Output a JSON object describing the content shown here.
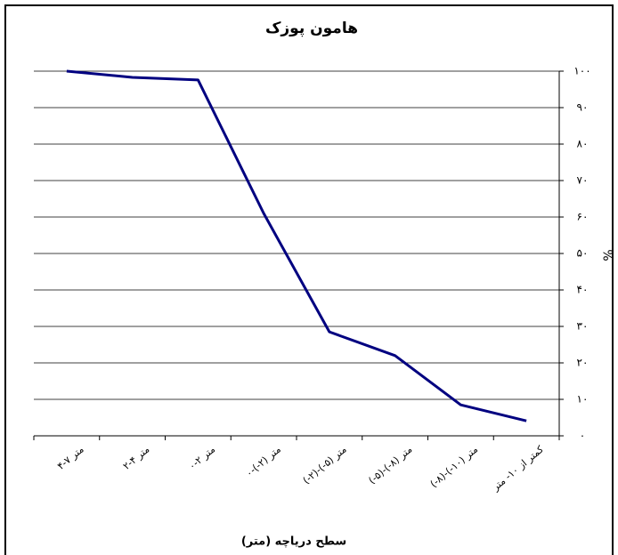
{
  "chart_data": {
    "type": "line",
    "title": "هامون پوزک",
    "x_label": "سطح دریاچه (متر)",
    "y_label": "%",
    "categories": [
      "۴-۷ متر",
      "۲-۴ متر",
      "۰-۲ متر",
      "۰-(-۲) متر",
      "(-۲)-(-۵) متر",
      "(-۵)-(-۸) متر",
      "(-۸)-(-۱۰) متر",
      "کمتر از ۱۰- متر"
    ],
    "series": [
      {
        "name": "هامون پوزک",
        "color": "#000080",
        "values": [
          100,
          98.3,
          97.6,
          61,
          28.5,
          22,
          8.5,
          4.1
        ]
      }
    ],
    "ylim": [
      0,
      100
    ],
    "yticks": [
      {
        "value": 0,
        "label": "۰"
      },
      {
        "value": 10,
        "label": "۱۰"
      },
      {
        "value": 20,
        "label": "۲۰"
      },
      {
        "value": 30,
        "label": "۳۰"
      },
      {
        "value": 40,
        "label": "۴۰"
      },
      {
        "value": 50,
        "label": "۵۰"
      },
      {
        "value": 60,
        "label": "۶۰"
      },
      {
        "value": 70,
        "label": "۷۰"
      },
      {
        "value": 80,
        "label": "۸۰"
      },
      {
        "value": 90,
        "label": "۹۰"
      },
      {
        "value": 100,
        "label": "۱۰۰"
      }
    ],
    "grid": true,
    "y_axis_side": "right"
  }
}
